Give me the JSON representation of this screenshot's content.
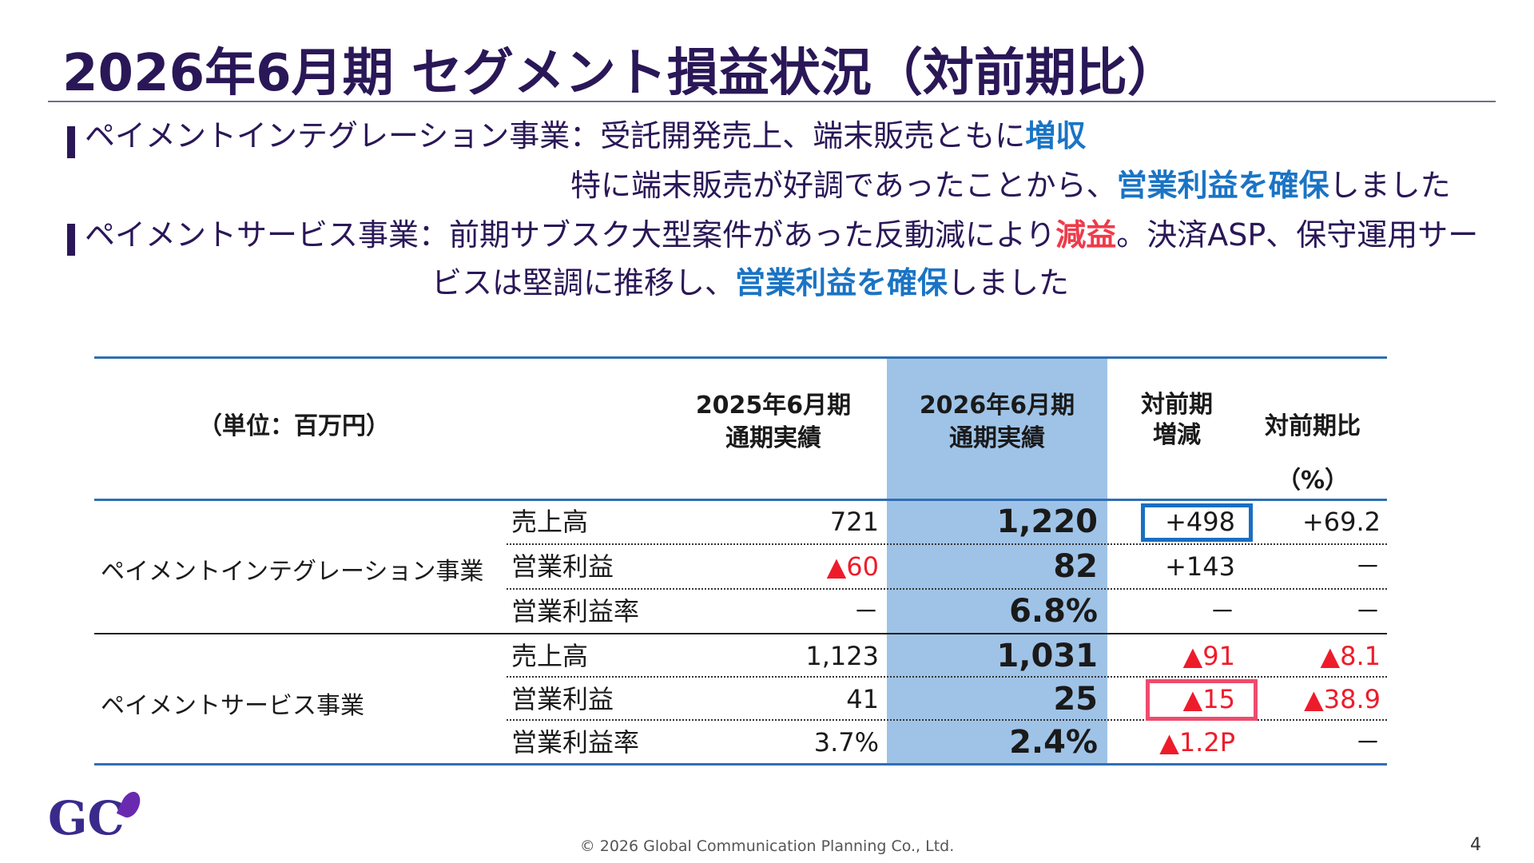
{
  "title": "2026年6月期 セグメント損益状況（対前期比）",
  "bullets": {
    "b1_line1_prefix": "ペイメントインテグレーション事業：受託開発売上、端末販売ともに",
    "b1_line1_hl": "増収",
    "b1_line2_prefix": "特に端末販売が好調であったことから、",
    "b1_line2_hl": "営業利益を確保",
    "b1_line2_suffix": "しました",
    "b2_line1_prefix": "ペイメントサービス事業：前期サブスク大型案件があった反動減により",
    "b2_line1_hl": "減益",
    "b2_line1_suffix": "。決済ASP、保守運用サー",
    "b2_line2_prefix": "ビスは堅調に推移し、",
    "b2_line2_hl": "営業利益を確保",
    "b2_line2_suffix": "しました"
  },
  "table": {
    "unit": "（単位：百万円）",
    "col_prev_l1": "2025年6月期",
    "col_prev_l2": "通期実績",
    "col_cur_l1": "2026年6月期",
    "col_cur_l2": "通期実績",
    "col_diff_l1": "対前期",
    "col_diff_l2": "増減",
    "col_ratio": "対前期比",
    "col_ratio_unit": "（%）",
    "seg1": {
      "name": "ペイメントインテグレーション事業",
      "rows": [
        {
          "label": "売上高",
          "prev": "721",
          "cur": "1,220",
          "diff": "+498",
          "ratio": "+69.2"
        },
        {
          "label": "営業利益",
          "prev": "▲60",
          "cur": "82",
          "diff": "+143",
          "ratio": "－"
        },
        {
          "label": "営業利益率",
          "prev": "－",
          "cur": "6.8%",
          "diff": "－",
          "ratio": "－"
        }
      ]
    },
    "seg2": {
      "name": "ペイメントサービス事業",
      "rows": [
        {
          "label": "売上高",
          "prev": "1,123",
          "cur": "1,031",
          "diff": "▲91",
          "ratio": "▲8.1"
        },
        {
          "label": "営業利益",
          "prev": "41",
          "cur": "25",
          "diff": "▲15",
          "ratio": "▲38.9"
        },
        {
          "label": "営業利益率",
          "prev": "3.7%",
          "cur": "2.4%",
          "diff": "▲1.2P",
          "ratio": "－"
        }
      ]
    }
  },
  "logo": {
    "text": "GC"
  },
  "footer": "© 2026 Global Communication Planning Co., Ltd.",
  "page_number": "4"
}
